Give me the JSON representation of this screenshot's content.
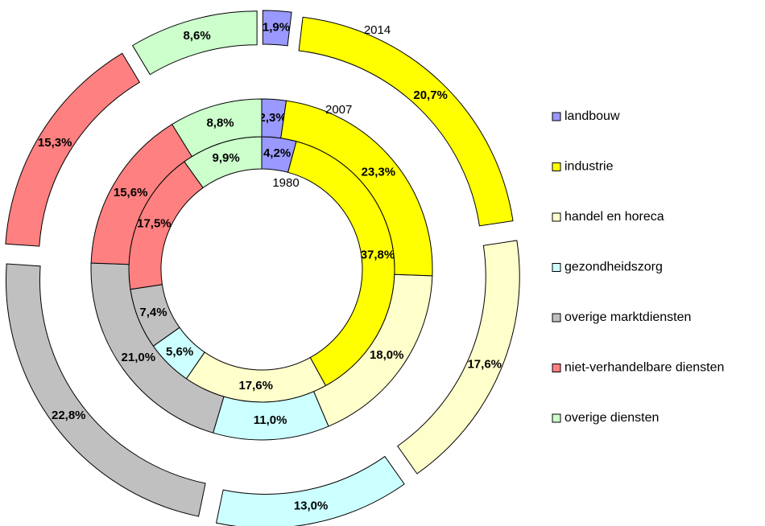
{
  "chart_data": {
    "type": "donut",
    "categories": [
      "landbouw",
      "industrie",
      "handel en horeca",
      "gezondheidszorg",
      "overige marktdiensten",
      "niet-verhandelbare diensten",
      "overige diensten"
    ],
    "colors": [
      "#9999ff",
      "#ffff00",
      "#ffffcc",
      "#ccffff",
      "#c0c0c0",
      "#ff8080",
      "#ccffcc"
    ],
    "series": [
      {
        "name": "1980",
        "values": [
          4.2,
          37.8,
          17.6,
          5.6,
          7.4,
          17.5,
          9.9
        ],
        "value_labels": [
          "4,2%",
          "37,8%",
          "17,6%",
          "5,6%",
          "7,4%",
          "17,5%",
          "9,9%"
        ]
      },
      {
        "name": "2007",
        "values": [
          2.3,
          23.3,
          18.0,
          11.0,
          21.0,
          15.6,
          8.8
        ],
        "value_labels": [
          "2,3%",
          "23,3%",
          "18,0%",
          "11,0%",
          "21,0%",
          "15,6%",
          "8,8%"
        ]
      },
      {
        "name": "2014",
        "values": [
          1.9,
          20.7,
          17.6,
          13.0,
          22.8,
          15.3,
          8.6
        ],
        "value_labels": [
          "1,9%",
          "20,7%",
          "17,6%",
          "13,0%",
          "22,8%",
          "15,3%",
          "8,6%"
        ]
      }
    ],
    "legend": "right"
  }
}
